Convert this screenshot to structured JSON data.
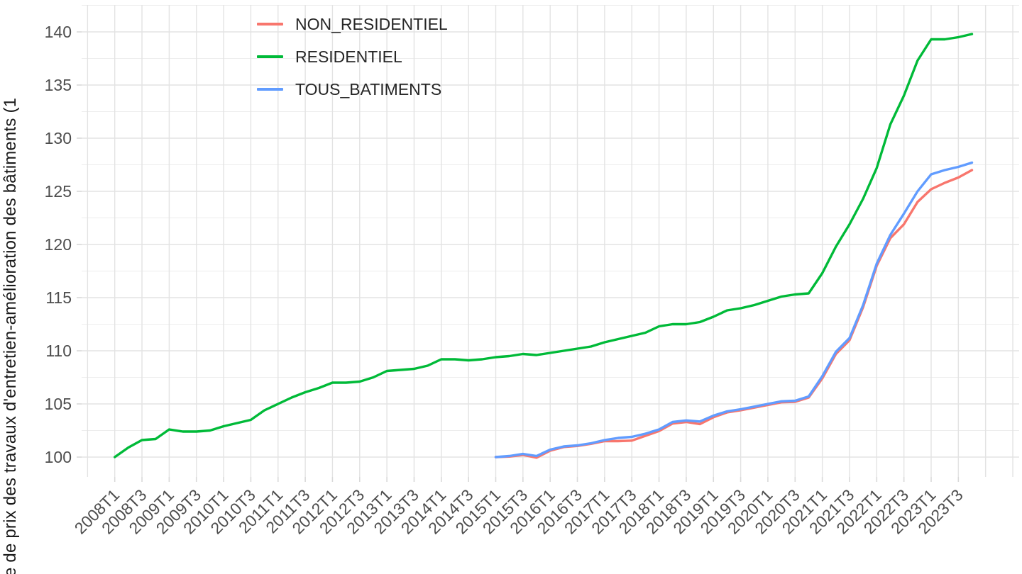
{
  "chart_data": {
    "type": "line",
    "title": "",
    "ylabel_visible": "e de prix des travaux d'entretien-amélioration des bâtiments (1",
    "xlabel": "",
    "grid": true,
    "legend_position": "top-left-inside",
    "ylim_visible": [
      98.1,
      142.5
    ],
    "y_ticks": [
      100,
      105,
      110,
      115,
      120,
      125,
      130,
      135,
      140
    ],
    "y_minor_ticks": [
      102.5,
      107.5,
      112.5,
      117.5,
      122.5,
      127.5,
      132.5,
      137.5,
      142.5
    ],
    "x_categories": [
      "2008T1",
      "2008T2",
      "2008T3",
      "2008T4",
      "2009T1",
      "2009T2",
      "2009T3",
      "2009T4",
      "2010T1",
      "2010T2",
      "2010T3",
      "2010T4",
      "2011T1",
      "2011T2",
      "2011T3",
      "2011T4",
      "2012T1",
      "2012T2",
      "2012T3",
      "2012T4",
      "2013T1",
      "2013T2",
      "2013T3",
      "2013T4",
      "2014T1",
      "2014T2",
      "2014T3",
      "2014T4",
      "2015T1",
      "2015T2",
      "2015T3",
      "2015T4",
      "2016T1",
      "2016T2",
      "2016T3",
      "2016T4",
      "2017T1",
      "2017T2",
      "2017T3",
      "2017T4",
      "2018T1",
      "2018T2",
      "2018T3",
      "2018T4",
      "2019T1",
      "2019T2",
      "2019T3",
      "2019T4",
      "2020T1",
      "2020T2",
      "2020T3",
      "2020T4",
      "2021T1",
      "2021T2",
      "2021T3",
      "2021T4",
      "2022T1",
      "2022T2",
      "2022T3",
      "2022T4",
      "2023T1",
      "2023T2",
      "2023T3",
      "2023T4"
    ],
    "x_tick_labels": [
      "2008T1",
      "2008T3",
      "2009T1",
      "2009T3",
      "2010T1",
      "2010T3",
      "2011T1",
      "2011T3",
      "2012T1",
      "2012T3",
      "2013T1",
      "2013T3",
      "2014T1",
      "2014T3",
      "2015T1",
      "2015T3",
      "2016T1",
      "2016T3",
      "2017T1",
      "2017T3",
      "2018T1",
      "2018T3",
      "2019T1",
      "2019T3",
      "2020T1",
      "2020T3",
      "2021T1",
      "2021T3",
      "2022T1",
      "2022T3",
      "2023T1",
      "2023T3"
    ],
    "series": [
      {
        "name": "NON_RESIDENTIEL",
        "color": "#F8766D",
        "start_index": 28,
        "values": [
          100.0,
          100.05,
          100.2,
          99.95,
          100.6,
          100.95,
          101.05,
          101.25,
          101.5,
          101.5,
          101.55,
          102.0,
          102.45,
          103.15,
          103.3,
          103.1,
          103.75,
          104.2,
          104.4,
          104.65,
          104.9,
          105.15,
          105.2,
          105.6,
          107.4,
          109.7,
          111.0,
          114.1,
          118.0,
          120.6,
          121.9,
          124.0,
          125.2,
          125.8,
          126.3,
          127.0
        ]
      },
      {
        "name": "RESIDENTIEL",
        "color": "#00BA38",
        "start_index": 0,
        "values": [
          100.0,
          100.9,
          101.6,
          101.7,
          102.6,
          102.4,
          102.4,
          102.5,
          102.9,
          103.2,
          103.5,
          104.4,
          105.0,
          105.6,
          106.1,
          106.5,
          107.0,
          107.0,
          107.1,
          107.5,
          108.1,
          108.2,
          108.3,
          108.6,
          109.2,
          109.2,
          109.1,
          109.2,
          109.4,
          109.5,
          109.7,
          109.6,
          109.8,
          110.0,
          110.2,
          110.4,
          110.8,
          111.1,
          111.4,
          111.7,
          112.3,
          112.5,
          112.5,
          112.7,
          113.2,
          113.8,
          114.0,
          114.3,
          114.7,
          115.1,
          115.3,
          115.4,
          117.3,
          119.8,
          121.9,
          124.3,
          127.2,
          131.3,
          134.0,
          137.3,
          139.3,
          139.3,
          139.5,
          139.8
        ]
      },
      {
        "name": "TOUS_BATIMENTS",
        "color": "#619CFF",
        "start_index": 28,
        "values": [
          100.0,
          100.1,
          100.3,
          100.1,
          100.7,
          101.0,
          101.1,
          101.3,
          101.6,
          101.8,
          101.9,
          102.2,
          102.6,
          103.3,
          103.45,
          103.35,
          103.9,
          104.3,
          104.5,
          104.75,
          105.0,
          105.25,
          105.3,
          105.7,
          107.6,
          109.9,
          111.2,
          114.3,
          118.2,
          120.9,
          122.9,
          125.0,
          126.6,
          127.0,
          127.3,
          127.7
        ]
      }
    ]
  },
  "colors": {
    "background": "#FFFFFF",
    "grid_major": "#E3E3E3",
    "grid_minor": "#EDEDED",
    "tick_mark": "#D9D9D9",
    "axis_text": "#4D4D4D",
    "axis_title": "#1A1A1A"
  }
}
